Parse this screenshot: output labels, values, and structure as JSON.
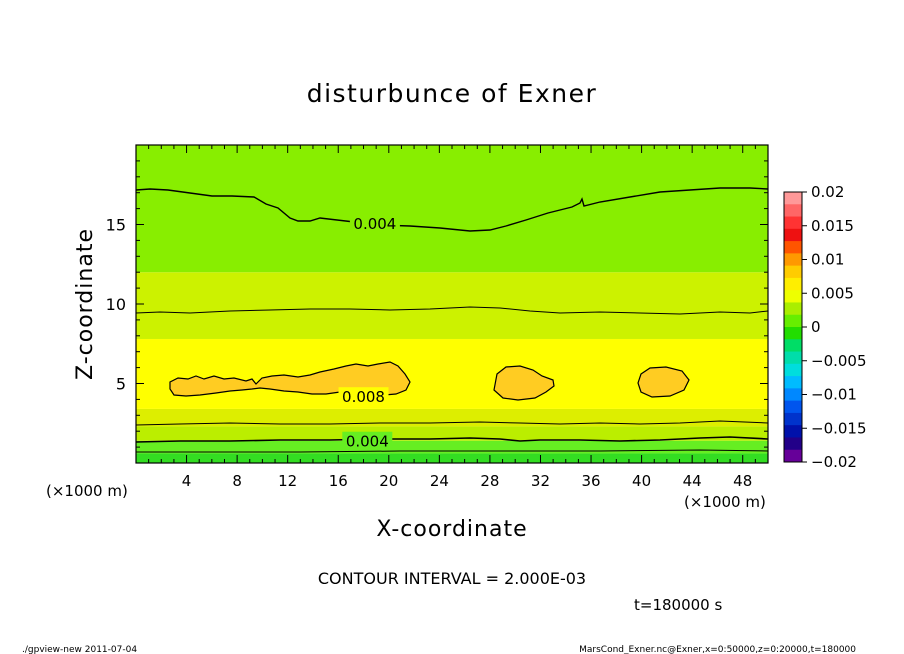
{
  "chart_data": {
    "type": "contour",
    "title": "disturbunce of Exner",
    "xlabel": "X-coordinate",
    "ylabel": "Z-coordinate",
    "x_unit_left": "(×1000 m)",
    "x_unit_right": "(×1000 m)",
    "xlim": [
      0,
      50
    ],
    "ylim": [
      0,
      20
    ],
    "xticks": [
      4,
      8,
      12,
      16,
      20,
      24,
      28,
      32,
      36,
      40,
      44,
      48
    ],
    "yticks": [
      5,
      10,
      15
    ],
    "contour_interval_text": "CONTOUR INTERVAL = 2.000E-03",
    "time_text": "t=180000 s",
    "contour_labels": [
      {
        "text": "0.004",
        "x": 18.9,
        "z": 15.1
      },
      {
        "text": "0.008",
        "x": 18.0,
        "z": 4.2
      },
      {
        "text": "0.004",
        "x": 18.3,
        "z": 1.4
      }
    ],
    "bands": [
      {
        "z0": 0.0,
        "z1": 0.6,
        "value": 0.001,
        "color": "#33dd22"
      },
      {
        "z0": 0.6,
        "z1": 1.4,
        "value": 0.003,
        "color": "#66ee22"
      },
      {
        "z0": 1.4,
        "z1": 2.3,
        "value": 0.005,
        "color": "#bbee00"
      },
      {
        "z0": 2.3,
        "z1": 3.4,
        "value": 0.007,
        "color": "#ddee00"
      },
      {
        "z0": 3.4,
        "z1": 7.8,
        "value": 0.008,
        "color": "#ffff00"
      },
      {
        "z0": 7.8,
        "z1": 12.0,
        "value": 0.005,
        "color": "#ccf200"
      },
      {
        "z0": 12.0,
        "z1": 20.0,
        "value": 0.003,
        "color": "#88ee00"
      }
    ],
    "colorbar": {
      "ticks": [
        "0.02",
        "0.015",
        "0.01",
        "0.005",
        "0",
        "−0.005",
        "−0.01",
        "−0.015",
        "−0.02"
      ],
      "colors": [
        "#ff9999",
        "#ff6666",
        "#ff3333",
        "#ee1111",
        "#ff5500",
        "#ff9900",
        "#ffcc00",
        "#ffee00",
        "#eeff00",
        "#aaee00",
        "#66ee00",
        "#22dd00",
        "#00dd66",
        "#00ddaa",
        "#00dddd",
        "#00bbff",
        "#0088ff",
        "#0055ee",
        "#0033cc",
        "#0011aa",
        "#220088",
        "#660099"
      ]
    }
  },
  "footer": {
    "left": "./gpview-new   2011-07-04",
    "right": "MarsCond_Exner.nc@Exner,x=0:50000,z=0:20000,t=180000"
  }
}
